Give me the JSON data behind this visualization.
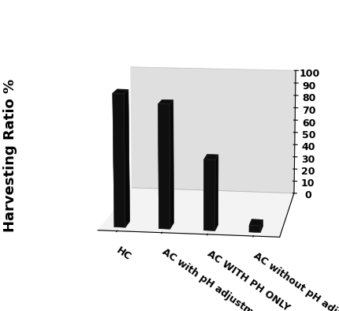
{
  "categories": [
    "HC",
    "AC with pH adjustment.",
    "AC WITH PH ONLY",
    "AC without pH adjustment"
  ],
  "values": [
    100,
    93,
    53,
    5
  ],
  "bar_color": "#111111",
  "bar_width": 0.35,
  "bar_depth": 0.5,
  "ylabel": "Harvesting Ratio %",
  "ylabel_fontsize": 13,
  "ylabel_fontweight": "bold",
  "yticks": [
    0,
    10,
    20,
    30,
    40,
    50,
    60,
    70,
    80,
    90,
    100
  ],
  "ylim": [
    0,
    100
  ],
  "back_wall_color": "#c0c0c0",
  "floor_color": "#e8e8e8",
  "tick_label_fontsize": 9,
  "x_label_fontsize": 9,
  "elev": 12,
  "azim": -82
}
